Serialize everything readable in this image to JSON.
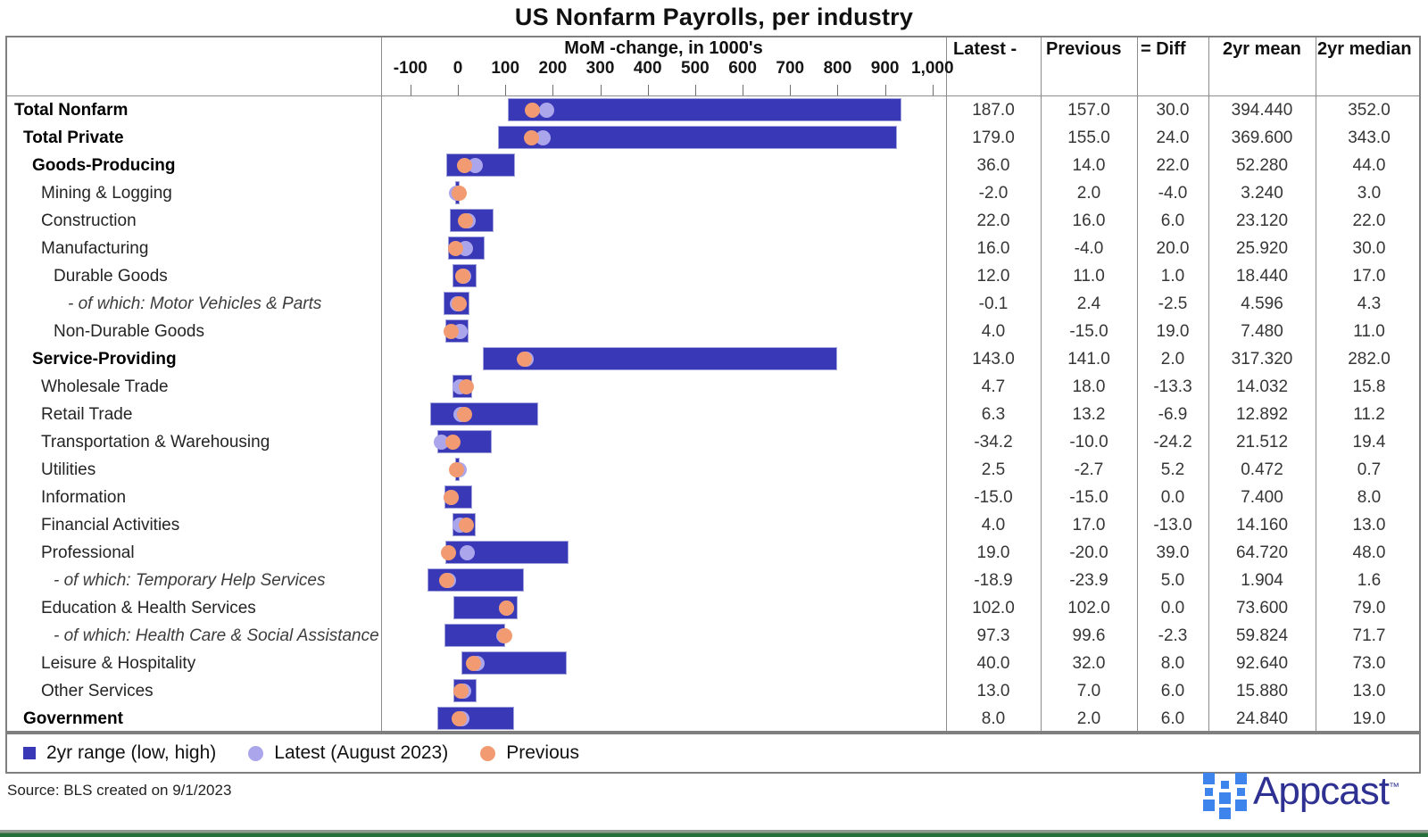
{
  "title": "US Nonfarm Payrolls, per industry",
  "axis": {
    "label": "MoM -change, in 1000's",
    "min": -100,
    "max": 1000,
    "ticks": [
      {
        "v": -100,
        "label": "-100"
      },
      {
        "v": 0,
        "label": "0"
      },
      {
        "v": 100,
        "label": "100"
      },
      {
        "v": 200,
        "label": "200"
      },
      {
        "v": 300,
        "label": "300"
      },
      {
        "v": 400,
        "label": "400"
      },
      {
        "v": 500,
        "label": "500"
      },
      {
        "v": 600,
        "label": "600"
      },
      {
        "v": 700,
        "label": "700"
      },
      {
        "v": 800,
        "label": "800"
      },
      {
        "v": 900,
        "label": "900"
      },
      {
        "v": 1000,
        "label": "1,000"
      }
    ]
  },
  "columns": {
    "latest": "Latest -",
    "previous": "Previous",
    "diff": "= Diff",
    "mean": "2yr mean",
    "median": "2yr median"
  },
  "legend": [
    {
      "label": "2yr range (low, high)",
      "swatch": "square",
      "color": "#3938b6"
    },
    {
      "label": "Latest (August 2023)",
      "swatch": "dot",
      "color": "#aba5ec"
    },
    {
      "label": "Previous",
      "swatch": "dot",
      "color": "#f29b72"
    }
  ],
  "source": {
    "text": "Source: BLS created on 9/1/2023"
  },
  "logo": {
    "text": "Appcast",
    "tm": "™"
  },
  "colors": {
    "bar": "#3938b6",
    "dot_latest": "#aba5ec",
    "dot_previous": "#f29b72",
    "logo_text": "#2e3192",
    "logo_squares": "#3d85ec"
  },
  "chart_data": {
    "type": "bar",
    "title": "US Nonfarm Payrolls, per industry",
    "xlabel": "MoM -change, in 1000's",
    "xlim": [
      -100,
      1000
    ],
    "legend_position": "bottom",
    "grid": false,
    "note": "Horizontal range bars show 2yr (low, high) of MoM change; dots mark Latest (August 2023) and Previous values. Range low/high estimated from pixels.",
    "rows": [
      {
        "label": "Total Nonfarm",
        "level": 0,
        "bold": true,
        "italic": false,
        "range_low": 105,
        "range_high": 935,
        "latest": 187.0,
        "previous": 157.0,
        "diff": 30.0,
        "mean_2yr": 394.44,
        "median_2yr": 352.0
      },
      {
        "label": "Total Private",
        "level": 1,
        "bold": true,
        "italic": false,
        "range_low": 85,
        "range_high": 925,
        "latest": 179.0,
        "previous": 155.0,
        "diff": 24.0,
        "mean_2yr": 369.6,
        "median_2yr": 343.0
      },
      {
        "label": "Goods-Producing",
        "level": 2,
        "bold": true,
        "italic": false,
        "range_low": -25,
        "range_high": 120,
        "latest": 36.0,
        "previous": 14.0,
        "diff": 22.0,
        "mean_2yr": 52.28,
        "median_2yr": 44.0
      },
      {
        "label": "Mining & Logging",
        "level": 3,
        "bold": false,
        "italic": false,
        "range_low": -6,
        "range_high": 3,
        "latest": -2.0,
        "previous": 2.0,
        "diff": -4.0,
        "mean_2yr": 3.24,
        "median_2yr": 3.0
      },
      {
        "label": "Construction",
        "level": 3,
        "bold": false,
        "italic": false,
        "range_low": -16,
        "range_high": 76,
        "latest": 22.0,
        "previous": 16.0,
        "diff": 6.0,
        "mean_2yr": 23.12,
        "median_2yr": 22.0
      },
      {
        "label": "Manufacturing",
        "level": 3,
        "bold": false,
        "italic": false,
        "range_low": -20,
        "range_high": 57,
        "latest": 16.0,
        "previous": -4.0,
        "diff": 20.0,
        "mean_2yr": 25.92,
        "median_2yr": 30.0
      },
      {
        "label": "Durable Goods",
        "level": 4,
        "bold": false,
        "italic": false,
        "range_low": -12,
        "range_high": 40,
        "latest": 12.0,
        "previous": 11.0,
        "diff": 1.0,
        "mean_2yr": 18.44,
        "median_2yr": 17.0
      },
      {
        "label": "- of which: Motor Vehicles & Parts",
        "level": 5,
        "bold": false,
        "italic": true,
        "range_low": -30,
        "range_high": 25,
        "latest": -0.1,
        "previous": 2.4,
        "diff": -2.5,
        "mean_2yr": 4.596,
        "median_2yr": 4.3
      },
      {
        "label": "Non-Durable Goods",
        "level": 4,
        "bold": false,
        "italic": false,
        "range_low": -26,
        "range_high": 23,
        "latest": 4.0,
        "previous": -15.0,
        "diff": 19.0,
        "mean_2yr": 7.48,
        "median_2yr": 11.0
      },
      {
        "label": "Service-Providing",
        "level": 2,
        "bold": true,
        "italic": false,
        "range_low": 52,
        "range_high": 800,
        "latest": 143.0,
        "previous": 141.0,
        "diff": 2.0,
        "mean_2yr": 317.32,
        "median_2yr": 282.0
      },
      {
        "label": "Wholesale Trade",
        "level": 3,
        "bold": false,
        "italic": false,
        "range_low": -12,
        "range_high": 30,
        "latest": 4.7,
        "previous": 18.0,
        "diff": -13.3,
        "mean_2yr": 14.032,
        "median_2yr": 15.8
      },
      {
        "label": "Retail Trade",
        "level": 3,
        "bold": false,
        "italic": false,
        "range_low": -59,
        "range_high": 169,
        "latest": 6.3,
        "previous": 13.2,
        "diff": -6.9,
        "mean_2yr": 12.892,
        "median_2yr": 11.2
      },
      {
        "label": "Transportation & Warehousing",
        "level": 3,
        "bold": false,
        "italic": false,
        "range_low": -43,
        "range_high": 72,
        "latest": -34.2,
        "previous": -10.0,
        "diff": -24.2,
        "mean_2yr": 21.512,
        "median_2yr": 19.4
      },
      {
        "label": "Utilities",
        "level": 3,
        "bold": false,
        "italic": false,
        "range_low": -5,
        "range_high": 3,
        "latest": 2.5,
        "previous": -2.7,
        "diff": 5.2,
        "mean_2yr": 0.472,
        "median_2yr": 0.7
      },
      {
        "label": "Information",
        "level": 3,
        "bold": false,
        "italic": false,
        "range_low": -29,
        "range_high": 31,
        "latest": -15.0,
        "previous": -15.0,
        "diff": 0.0,
        "mean_2yr": 7.4,
        "median_2yr": 8.0
      },
      {
        "label": "Financial Activities",
        "level": 3,
        "bold": false,
        "italic": false,
        "range_low": -11,
        "range_high": 37,
        "latest": 4.0,
        "previous": 17.0,
        "diff": -13.0,
        "mean_2yr": 14.16,
        "median_2yr": 13.0
      },
      {
        "label": "Professional",
        "level": 3,
        "bold": false,
        "italic": false,
        "range_low": -26,
        "range_high": 233,
        "latest": 19.0,
        "previous": -20.0,
        "diff": 39.0,
        "mean_2yr": 64.72,
        "median_2yr": 48.0
      },
      {
        "label": "- of which: Temporary Help Services",
        "level": 4,
        "bold": false,
        "italic": true,
        "range_low": -63,
        "range_high": 140,
        "latest": -18.9,
        "previous": -23.9,
        "diff": 5.0,
        "mean_2yr": 1.904,
        "median_2yr": 1.6
      },
      {
        "label": "Education & Health Services",
        "level": 3,
        "bold": false,
        "italic": false,
        "range_low": -10,
        "range_high": 126,
        "latest": 102.0,
        "previous": 102.0,
        "diff": 0.0,
        "mean_2yr": 73.6,
        "median_2yr": 79.0
      },
      {
        "label": "- of which: Health Care & Social Assistance",
        "level": 4,
        "bold": false,
        "italic": true,
        "range_low": -28,
        "range_high": 100,
        "latest": 97.3,
        "previous": 99.6,
        "diff": -2.3,
        "mean_2yr": 59.824,
        "median_2yr": 71.7
      },
      {
        "label": "Leisure & Hospitality",
        "level": 3,
        "bold": false,
        "italic": false,
        "range_low": 7,
        "range_high": 230,
        "latest": 40.0,
        "previous": 32.0,
        "diff": 8.0,
        "mean_2yr": 92.64,
        "median_2yr": 73.0
      },
      {
        "label": "Other Services",
        "level": 3,
        "bold": false,
        "italic": false,
        "range_low": -10,
        "range_high": 39,
        "latest": 13.0,
        "previous": 7.0,
        "diff": 6.0,
        "mean_2yr": 15.88,
        "median_2yr": 13.0
      },
      {
        "label": "Government",
        "level": 1,
        "bold": true,
        "italic": false,
        "range_low": -43,
        "range_high": 119,
        "latest": 8.0,
        "previous": 2.0,
        "diff": 6.0,
        "mean_2yr": 24.84,
        "median_2yr": 19.0
      }
    ]
  }
}
